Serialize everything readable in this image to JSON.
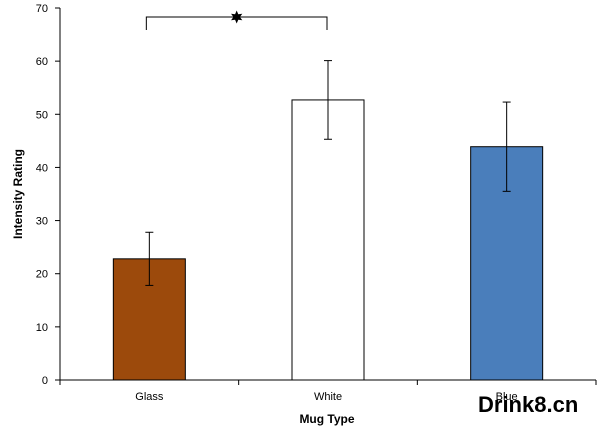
{
  "chart_data": {
    "type": "bar",
    "categories": [
      "Glass",
      "White",
      "Blue"
    ],
    "values": [
      22.8,
      52.7,
      43.9
    ],
    "error": [
      5.0,
      7.4,
      8.4
    ],
    "bar_colors": [
      "#9c4a0c",
      "#ffffff",
      "#4a7ebb"
    ],
    "bar_outline": "#000000",
    "xlabel": "Mug Type",
    "ylabel": "Intensity Rating",
    "ylim": [
      0,
      70
    ],
    "yticks": [
      0,
      10,
      20,
      30,
      40,
      50,
      60,
      70
    ],
    "grid": false,
    "legend": "none",
    "significance": {
      "from_category": "Glass",
      "to_category": "White",
      "marker": "star"
    }
  },
  "watermark": "Drink8.cn"
}
